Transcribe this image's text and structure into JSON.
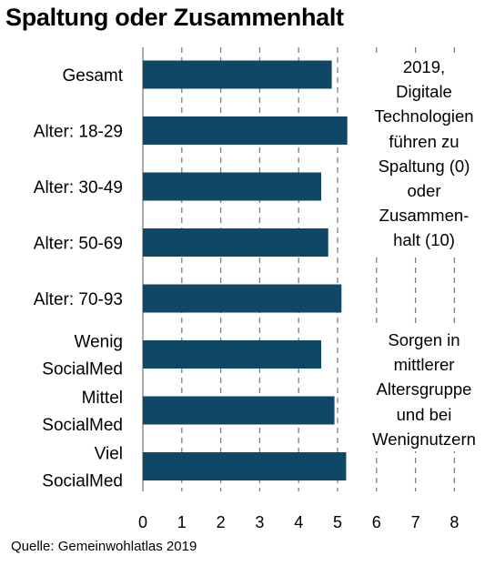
{
  "title": "Spaltung oder Zusammenhalt",
  "source": "Quelle: Gemeinwohlatlas 2019",
  "annotations": {
    "top": [
      "2019,",
      "Digitale",
      "Technologien",
      "führen zu",
      "Spaltung (0)",
      "oder",
      "Zusammen-",
      "halt (10)"
    ],
    "bottom": [
      "Sorgen in",
      "mittlerer",
      "Altersgruppe",
      "und bei",
      "Wenignutzern"
    ]
  },
  "colors": {
    "bar": "#0f4766",
    "grid": "#7f7f7f"
  },
  "chart_data": {
    "type": "bar",
    "orientation": "horizontal",
    "title": "Spaltung oder Zusammenhalt",
    "categories": [
      [
        "Gesamt"
      ],
      [
        "Alter: 18-29"
      ],
      [
        "Alter: 30-49"
      ],
      [
        "Alter: 50-69"
      ],
      [
        "Alter: 70-93"
      ],
      [
        "Wenig",
        "SocialMed"
      ],
      [
        "Mittel",
        "SocialMed"
      ],
      [
        "Viel",
        "SocialMed"
      ]
    ],
    "values": [
      4.85,
      5.25,
      4.58,
      4.76,
      5.1,
      4.58,
      4.92,
      5.22
    ],
    "xlim": [
      0,
      8
    ],
    "xticks": [
      "0",
      "1",
      "2",
      "3",
      "4",
      "5",
      "6",
      "7",
      "8"
    ],
    "grid": "vertical dashed",
    "legend": "none"
  }
}
